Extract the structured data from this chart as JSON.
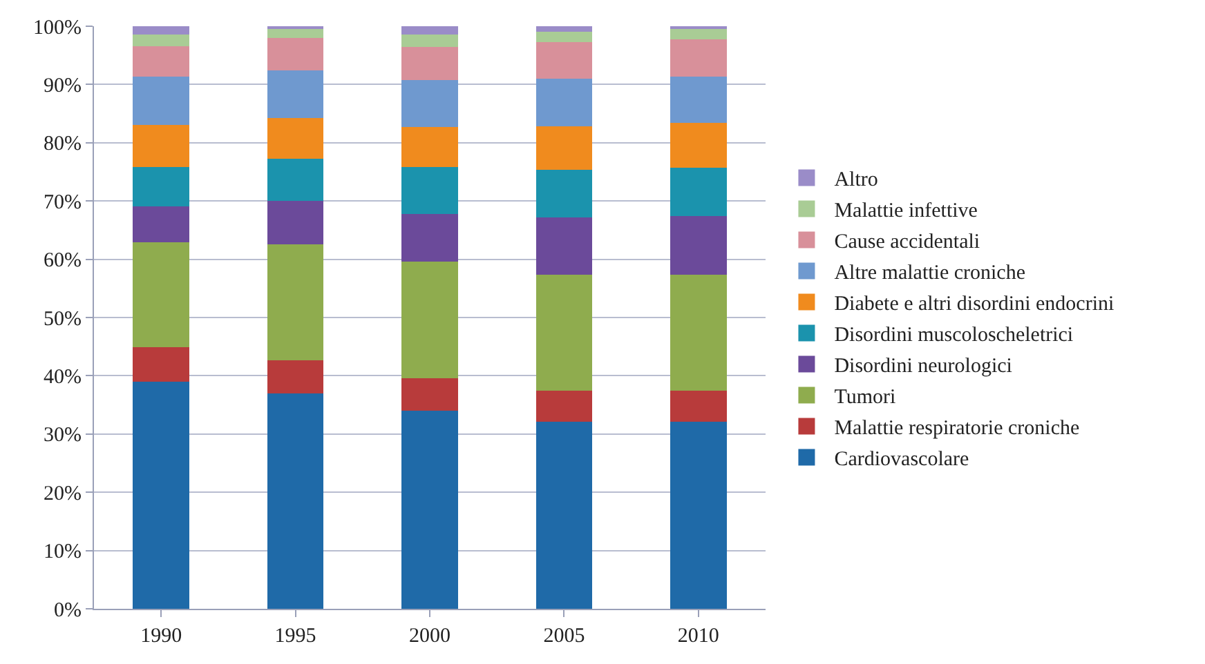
{
  "chart_data": {
    "type": "bar",
    "stacked": true,
    "categories": [
      "1990",
      "1995",
      "2000",
      "2005",
      "2010"
    ],
    "ylim": [
      0,
      100
    ],
    "yticks": [
      {
        "value": 0,
        "label": "0%"
      },
      {
        "value": 10,
        "label": "10%"
      },
      {
        "value": 20,
        "label": "20%"
      },
      {
        "value": 30,
        "label": "30%"
      },
      {
        "value": 40,
        "label": "40%"
      },
      {
        "value": 50,
        "label": "50%"
      },
      {
        "value": 60,
        "label": "60%"
      },
      {
        "value": 70,
        "label": "70%"
      },
      {
        "value": 80,
        "label": "80%"
      },
      {
        "value": 90,
        "label": "90%"
      },
      {
        "value": 100,
        "label": "100%"
      }
    ],
    "grid": "y",
    "legend": "right",
    "series": [
      {
        "name": "Cardiovascolare",
        "color": "#1f6aa8",
        "values": [
          39,
          37,
          34,
          32.1,
          32.1
        ]
      },
      {
        "name": "Malattie respiratorie croniche",
        "color": "#b83b3b",
        "values": [
          5.9,
          5.7,
          5.6,
          5.3,
          5.3
        ]
      },
      {
        "name": "Tumori",
        "color": "#8fac4e",
        "values": [
          18,
          19.9,
          20,
          20,
          20
        ]
      },
      {
        "name": "Disordini neurologici",
        "color": "#6b4a9a",
        "values": [
          6.2,
          7.4,
          8.2,
          9.8,
          10
        ]
      },
      {
        "name": "Disordini muscoloscheletrici",
        "color": "#1b93ad",
        "values": [
          6.7,
          7.2,
          8,
          8.2,
          8.3
        ]
      },
      {
        "name": "Diabete e altri disordini endocrini",
        "color": "#f08b1e",
        "values": [
          7.2,
          7.1,
          6.9,
          7.4,
          7.7
        ]
      },
      {
        "name": "Altre malattie croniche",
        "color": "#6f99cf",
        "values": [
          8.3,
          8.1,
          8.1,
          8.2,
          8
        ]
      },
      {
        "name": "Cause accidentali",
        "color": "#d8909a",
        "values": [
          5.3,
          5.6,
          5.7,
          6.3,
          6.4
        ]
      },
      {
        "name": "Malattie infettive",
        "color": "#a9cc95",
        "values": [
          2,
          1.5,
          2.1,
          1.7,
          1.7
        ]
      },
      {
        "name": "Altro",
        "color": "#9a8cc8",
        "values": [
          1.4,
          0.5,
          1.4,
          1,
          0.5
        ]
      }
    ]
  }
}
